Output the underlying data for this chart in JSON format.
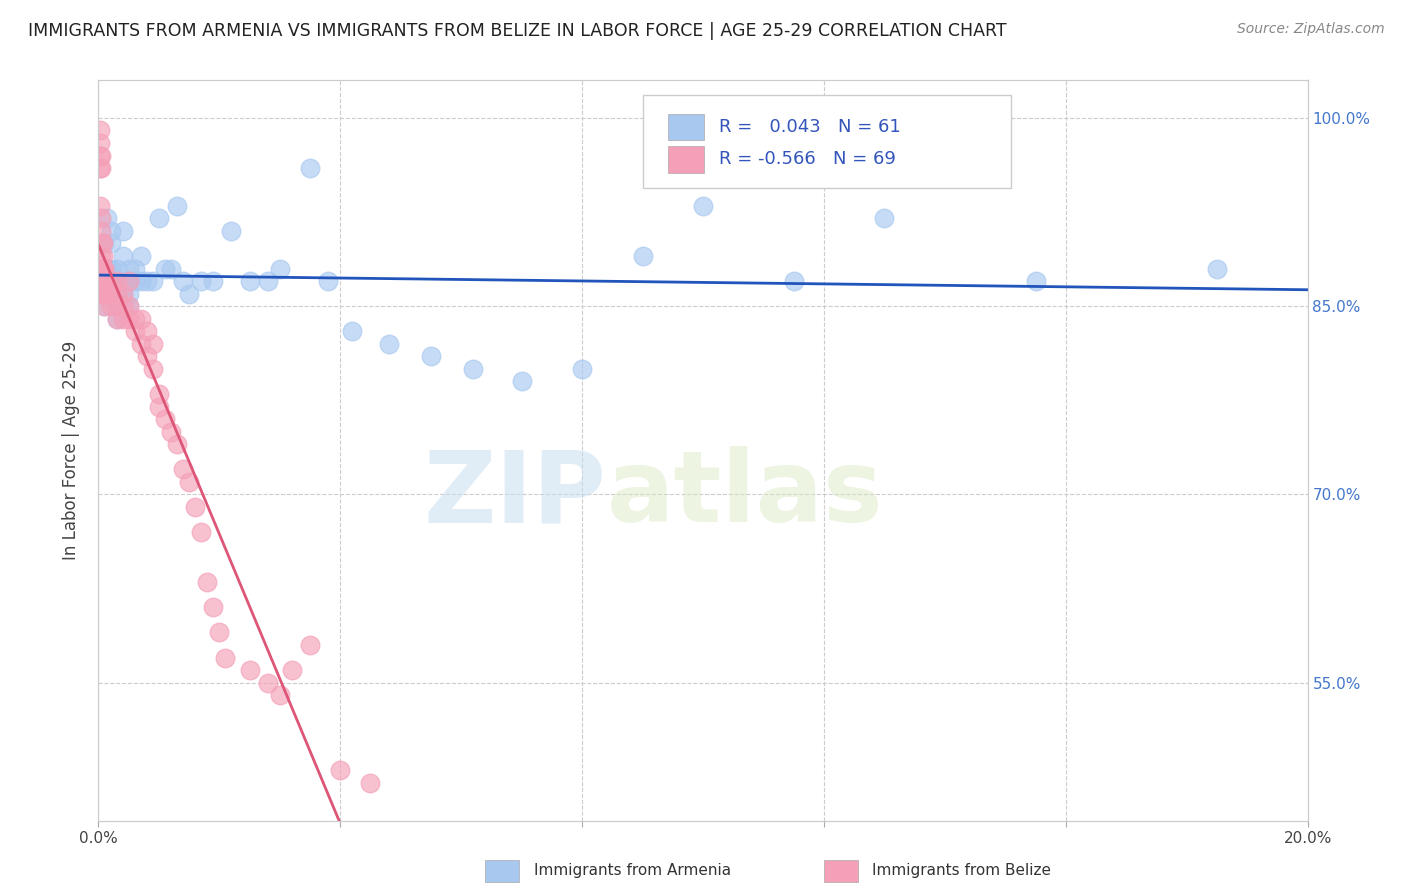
{
  "title": "IMMIGRANTS FROM ARMENIA VS IMMIGRANTS FROM BELIZE IN LABOR FORCE | AGE 25-29 CORRELATION CHART",
  "source": "Source: ZipAtlas.com",
  "ylabel": "In Labor Force | Age 25-29",
  "x_min": 0.0,
  "x_max": 0.2,
  "y_min": 0.44,
  "y_max": 1.03,
  "x_ticks": [
    0.0,
    0.04,
    0.08,
    0.12,
    0.16,
    0.2
  ],
  "x_tick_labels": [
    "0.0%",
    "",
    "",
    "",
    "",
    "20.0%"
  ],
  "y_ticks": [
    0.55,
    0.7,
    0.85,
    1.0
  ],
  "y_tick_labels": [
    "55.0%",
    "70.0%",
    "85.0%",
    "100.0%"
  ],
  "armenia_color": "#a8c8f0",
  "belize_color": "#f4a0b8",
  "armenia_line_color": "#2255bb",
  "belize_line_color": "#dd5577",
  "belize_dash_color": "#cccccc",
  "R_armenia": 0.043,
  "N_armenia": 61,
  "R_belize": -0.566,
  "N_belize": 69,
  "legend_label_armenia": "Immigrants from Armenia",
  "legend_label_belize": "Immigrants from Belize",
  "watermark_zip": "ZIP",
  "watermark_atlas": "atlas",
  "background_color": "#ffffff",
  "grid_color": "#cccccc",
  "armenia_x": [
    0.0008,
    0.0008,
    0.001,
    0.001,
    0.001,
    0.001,
    0.001,
    0.0012,
    0.0015,
    0.0015,
    0.0018,
    0.002,
    0.002,
    0.002,
    0.002,
    0.002,
    0.003,
    0.003,
    0.003,
    0.003,
    0.003,
    0.004,
    0.004,
    0.004,
    0.004,
    0.005,
    0.005,
    0.005,
    0.005,
    0.006,
    0.006,
    0.007,
    0.007,
    0.008,
    0.009,
    0.01,
    0.011,
    0.012,
    0.013,
    0.014,
    0.015,
    0.017,
    0.019,
    0.022,
    0.025,
    0.028,
    0.03,
    0.035,
    0.038,
    0.042,
    0.048,
    0.055,
    0.062,
    0.07,
    0.08,
    0.09,
    0.1,
    0.115,
    0.13,
    0.155,
    0.185
  ],
  "armenia_y": [
    0.88,
    0.86,
    0.9,
    0.88,
    0.87,
    0.86,
    0.85,
    0.88,
    0.92,
    0.88,
    0.88,
    0.91,
    0.9,
    0.88,
    0.87,
    0.86,
    0.88,
    0.87,
    0.86,
    0.85,
    0.84,
    0.91,
    0.89,
    0.87,
    0.86,
    0.88,
    0.87,
    0.86,
    0.85,
    0.88,
    0.87,
    0.89,
    0.87,
    0.87,
    0.87,
    0.92,
    0.88,
    0.88,
    0.93,
    0.87,
    0.86,
    0.87,
    0.87,
    0.91,
    0.87,
    0.87,
    0.88,
    0.96,
    0.87,
    0.83,
    0.82,
    0.81,
    0.8,
    0.79,
    0.8,
    0.89,
    0.93,
    0.87,
    0.92,
    0.87,
    0.88
  ],
  "belize_x": [
    0.0002,
    0.0002,
    0.0003,
    0.0003,
    0.0003,
    0.0004,
    0.0004,
    0.0004,
    0.0005,
    0.0005,
    0.0005,
    0.0005,
    0.0006,
    0.0006,
    0.0006,
    0.0006,
    0.0007,
    0.0007,
    0.0007,
    0.0008,
    0.0008,
    0.0009,
    0.001,
    0.001,
    0.001,
    0.001,
    0.0015,
    0.0015,
    0.002,
    0.002,
    0.002,
    0.003,
    0.003,
    0.003,
    0.003,
    0.004,
    0.004,
    0.004,
    0.005,
    0.005,
    0.005,
    0.006,
    0.006,
    0.007,
    0.007,
    0.008,
    0.008,
    0.009,
    0.009,
    0.01,
    0.01,
    0.011,
    0.012,
    0.013,
    0.014,
    0.015,
    0.016,
    0.017,
    0.018,
    0.019,
    0.02,
    0.021,
    0.025,
    0.028,
    0.03,
    0.032,
    0.035,
    0.04,
    0.045
  ],
  "belize_y": [
    0.99,
    0.97,
    0.98,
    0.96,
    0.93,
    0.97,
    0.96,
    0.92,
    0.91,
    0.89,
    0.87,
    0.86,
    0.9,
    0.88,
    0.87,
    0.86,
    0.9,
    0.89,
    0.88,
    0.88,
    0.87,
    0.88,
    0.88,
    0.87,
    0.86,
    0.85,
    0.87,
    0.86,
    0.87,
    0.86,
    0.85,
    0.87,
    0.86,
    0.85,
    0.84,
    0.86,
    0.85,
    0.84,
    0.87,
    0.85,
    0.84,
    0.84,
    0.83,
    0.84,
    0.82,
    0.83,
    0.81,
    0.82,
    0.8,
    0.78,
    0.77,
    0.76,
    0.75,
    0.74,
    0.72,
    0.71,
    0.69,
    0.67,
    0.63,
    0.61,
    0.59,
    0.57,
    0.56,
    0.55,
    0.54,
    0.56,
    0.58,
    0.48,
    0.47
  ]
}
